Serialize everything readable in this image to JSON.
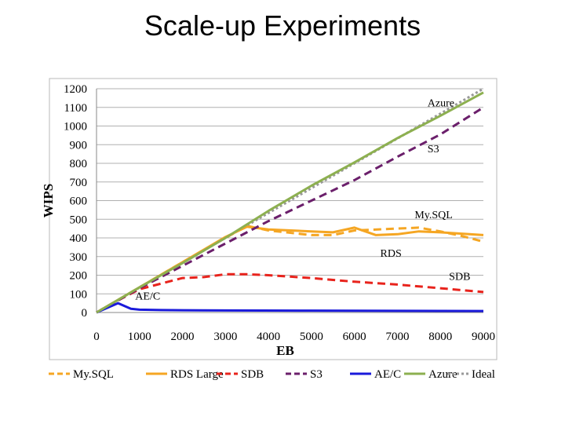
{
  "slide": {
    "title": "Scale-up Experiments"
  },
  "chart_data": {
    "type": "line",
    "title": "Scale-up Experiments",
    "xlabel": "EB",
    "ylabel": "WIPS",
    "xlim": [
      0,
      9000
    ],
    "ylim": [
      0,
      1200
    ],
    "x_ticks": [
      "0",
      "1000",
      "2000",
      "3000",
      "4000",
      "5000",
      "6000",
      "7000",
      "8000",
      "9000"
    ],
    "y_ticks": [
      "0",
      "100",
      "200",
      "300",
      "400",
      "500",
      "600",
      "700",
      "800",
      "900",
      "1000",
      "1100",
      "1200"
    ],
    "grid": "horizontal",
    "legend_position": "bottom",
    "series": [
      {
        "name": "My.SQL",
        "color": "#f5a623",
        "style": "dashed",
        "points": [
          [
            0,
            0
          ],
          [
            1000,
            135
          ],
          [
            2000,
            270
          ],
          [
            3000,
            400
          ],
          [
            3500,
            465
          ],
          [
            4000,
            440
          ],
          [
            5000,
            415
          ],
          [
            5500,
            415
          ],
          [
            6000,
            440
          ],
          [
            7000,
            450
          ],
          [
            7500,
            455
          ],
          [
            8000,
            435
          ],
          [
            8500,
            410
          ],
          [
            9000,
            380
          ]
        ]
      },
      {
        "name": "RDS Large",
        "color": "#f5a623",
        "style": "solid",
        "points": [
          [
            0,
            0
          ],
          [
            1000,
            135
          ],
          [
            2000,
            270
          ],
          [
            3000,
            405
          ],
          [
            3500,
            460
          ],
          [
            4000,
            445
          ],
          [
            5000,
            435
          ],
          [
            5500,
            430
          ],
          [
            6000,
            455
          ],
          [
            6500,
            415
          ],
          [
            7000,
            420
          ],
          [
            7500,
            435
          ],
          [
            8000,
            430
          ],
          [
            9000,
            415
          ]
        ]
      },
      {
        "name": "SDB",
        "color": "#e8231c",
        "style": "dashed",
        "points": [
          [
            0,
            0
          ],
          [
            500,
            65
          ],
          [
            1000,
            125
          ],
          [
            1500,
            155
          ],
          [
            2000,
            185
          ],
          [
            2500,
            190
          ],
          [
            3000,
            205
          ],
          [
            3500,
            205
          ],
          [
            4000,
            200
          ],
          [
            5000,
            185
          ],
          [
            6000,
            165
          ],
          [
            7000,
            150
          ],
          [
            8000,
            130
          ],
          [
            9000,
            110
          ]
        ]
      },
      {
        "name": "S3",
        "color": "#6b1f6b",
        "style": "dashed",
        "points": [
          [
            0,
            0
          ],
          [
            1000,
            130
          ],
          [
            2000,
            250
          ],
          [
            3000,
            370
          ],
          [
            4000,
            490
          ],
          [
            5000,
            600
          ],
          [
            6000,
            710
          ],
          [
            7000,
            835
          ],
          [
            8000,
            955
          ],
          [
            9000,
            1100
          ]
        ]
      },
      {
        "name": "AE/C",
        "color": "#1a1adb",
        "style": "solid",
        "points": [
          [
            0,
            0
          ],
          [
            500,
            50
          ],
          [
            800,
            20
          ],
          [
            1000,
            15
          ],
          [
            1500,
            13
          ],
          [
            2000,
            12
          ],
          [
            3000,
            11
          ],
          [
            5000,
            10
          ],
          [
            7000,
            9
          ],
          [
            9000,
            8
          ]
        ]
      },
      {
        "name": "Azure",
        "color": "#8db050",
        "style": "solid",
        "points": [
          [
            0,
            0
          ],
          [
            1000,
            135
          ],
          [
            2000,
            265
          ],
          [
            3000,
            400
          ],
          [
            4000,
            545
          ],
          [
            5000,
            680
          ],
          [
            6000,
            805
          ],
          [
            7000,
            935
          ],
          [
            8000,
            1055
          ],
          [
            9000,
            1180
          ]
        ]
      },
      {
        "name": "Ideal",
        "color": "#999999",
        "style": "dotted",
        "points": [
          [
            0,
            0
          ],
          [
            9000,
            1200
          ]
        ]
      }
    ],
    "annotations": [
      {
        "text": "Azure",
        "x": 7700,
        "y": 1105
      },
      {
        "text": "S3",
        "x": 7700,
        "y": 860
      },
      {
        "text": "My.SQL",
        "x": 7400,
        "y": 505
      },
      {
        "text": "RDS",
        "x": 6600,
        "y": 300
      },
      {
        "text": "SDB",
        "x": 8200,
        "y": 175
      },
      {
        "text": "AE/C",
        "x": 900,
        "y": 70
      }
    ]
  }
}
